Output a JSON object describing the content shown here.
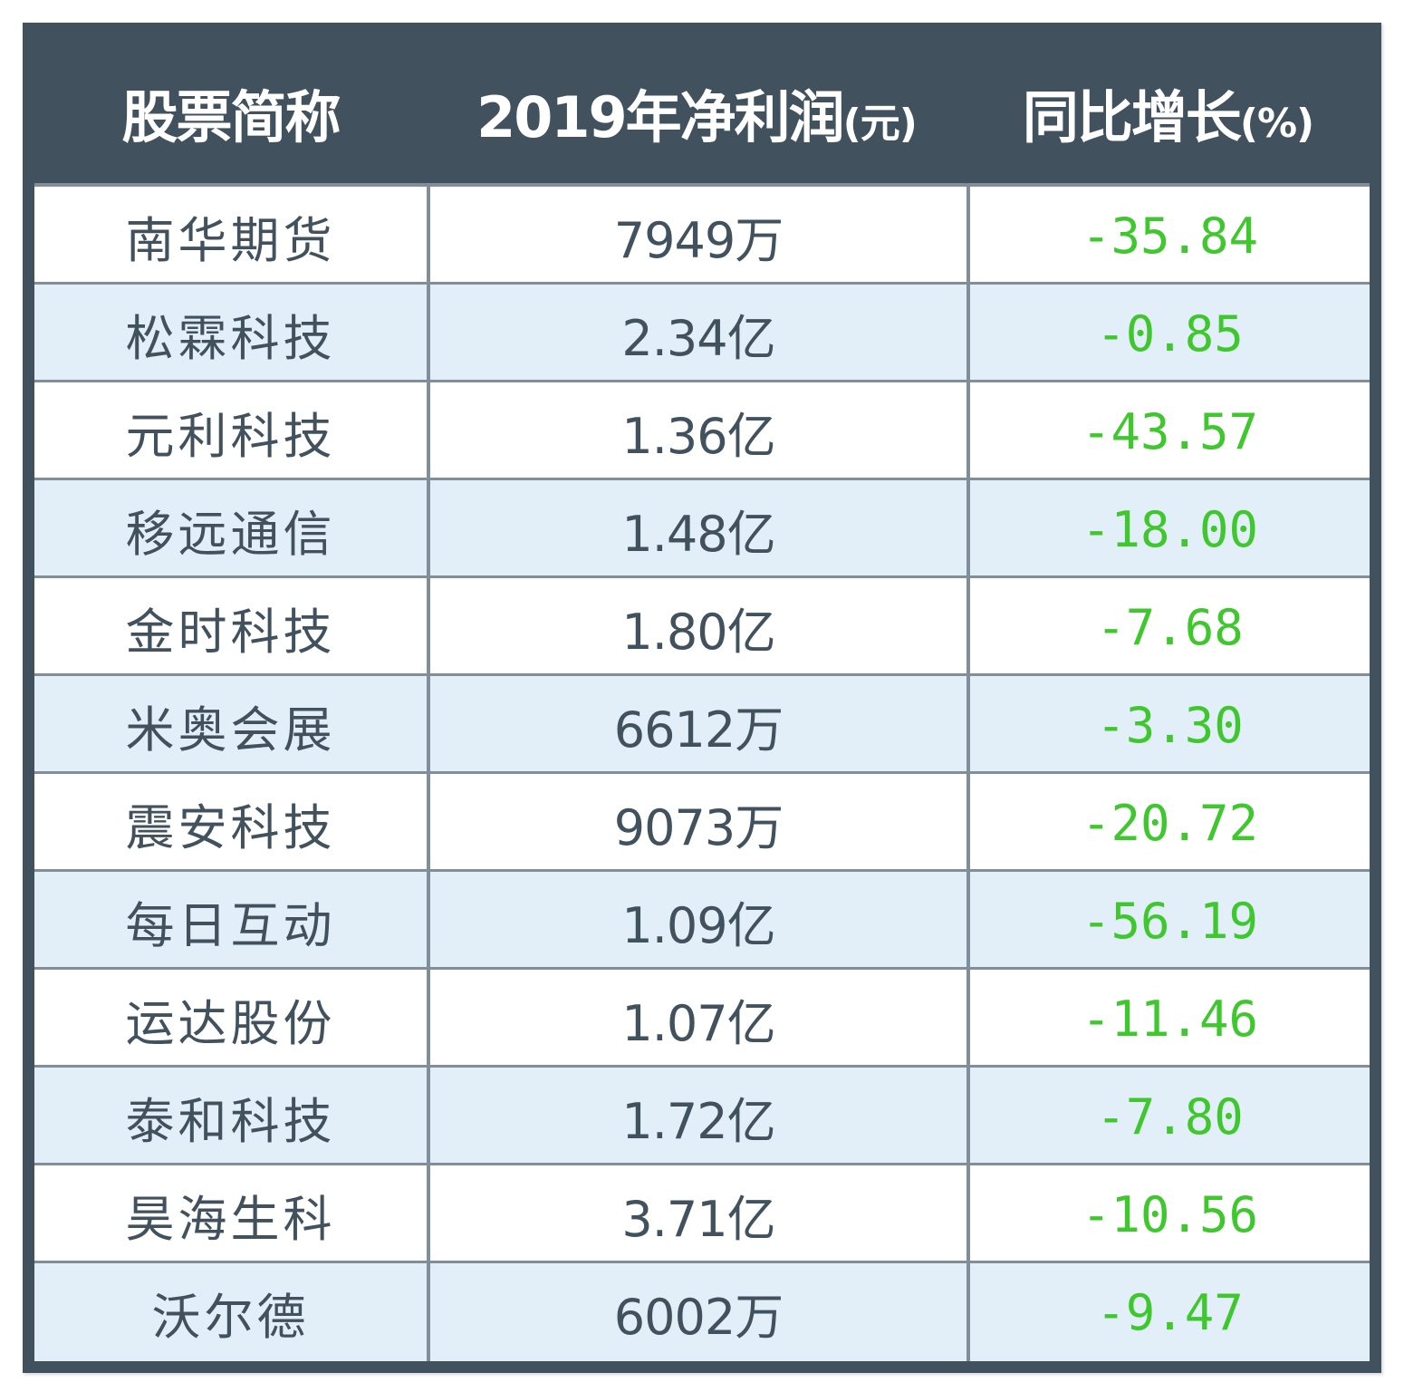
{
  "table": {
    "columns": [
      "股票简称",
      "2019年净利润",
      "同比增长"
    ],
    "column_units": [
      "",
      "(元)",
      "(%)"
    ],
    "rows": [
      {
        "name": "南华期货",
        "net_profit_2019": "7949万",
        "yoy_growth": "-35.84"
      },
      {
        "name": "松霖科技",
        "net_profit_2019": "2.34亿",
        "yoy_growth": "-0.85"
      },
      {
        "name": "元利科技",
        "net_profit_2019": "1.36亿",
        "yoy_growth": "-43.57"
      },
      {
        "name": "移远通信",
        "net_profit_2019": "1.48亿",
        "yoy_growth": "-18.00"
      },
      {
        "name": "金时科技",
        "net_profit_2019": "1.80亿",
        "yoy_growth": "-7.68"
      },
      {
        "name": "米奥会展",
        "net_profit_2019": "6612万",
        "yoy_growth": "-3.30"
      },
      {
        "name": "震安科技",
        "net_profit_2019": "9073万",
        "yoy_growth": "-20.72"
      },
      {
        "name": "每日互动",
        "net_profit_2019": "1.09亿",
        "yoy_growth": "-56.19"
      },
      {
        "name": "运达股份",
        "net_profit_2019": "1.07亿",
        "yoy_growth": "-11.46"
      },
      {
        "name": "泰和科技",
        "net_profit_2019": "1.72亿",
        "yoy_growth": "-7.80"
      },
      {
        "name": "昊海生科",
        "net_profit_2019": "3.71亿",
        "yoy_growth": "-10.56"
      },
      {
        "name": "沃尔德",
        "net_profit_2019": "6002万",
        "yoy_growth": "-9.47"
      }
    ]
  },
  "colors": {
    "header_bg": "#41525e",
    "header_text": "#ffffff",
    "row_alt_bg": "#e2eef8",
    "body_text": "#41525e",
    "growth_text": "#3fc82e",
    "grid_line": "#7f8e99"
  },
  "chart_data": {
    "type": "table",
    "title": "",
    "headers": [
      "股票简称",
      "2019年净利润(元)",
      "同比增长(%)"
    ],
    "categories": [
      "南华期货",
      "松霖科技",
      "元利科技",
      "移远通信",
      "金时科技",
      "米奥会展",
      "震安科技",
      "每日互动",
      "运达股份",
      "泰和科技",
      "昊海生科",
      "沃尔德"
    ],
    "series": [
      {
        "name": "2019年净利润(元)",
        "values": [
          "7949万",
          "2.34亿",
          "1.36亿",
          "1.48亿",
          "1.80亿",
          "6612万",
          "9073万",
          "1.09亿",
          "1.07亿",
          "1.72亿",
          "3.71亿",
          "6002万"
        ]
      },
      {
        "name": "同比增长(%)",
        "values": [
          -35.84,
          -0.85,
          -43.57,
          -18.0,
          -7.68,
          -3.3,
          -20.72,
          -56.19,
          -11.46,
          -7.8,
          -10.56,
          -9.47
        ]
      }
    ]
  }
}
